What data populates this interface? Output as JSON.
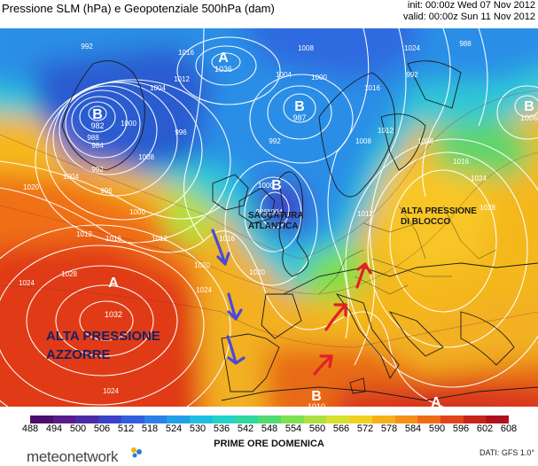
{
  "header": {
    "title": "Pressione SLM (hPa) e Geopotenziale 500hPa (dam)",
    "init": "init: 00:00z Wed 07 Nov 2012",
    "valid": "valid: 00:00z Sun 11 Nov 2012"
  },
  "map": {
    "pressure_centers": [
      {
        "type": "B",
        "value": "982"
      },
      {
        "type": "A",
        "value": "1036"
      },
      {
        "type": "B",
        "value": "987"
      },
      {
        "type": "B",
        "value": "1006"
      },
      {
        "type": "B",
        "value": ""
      },
      {
        "type": "A",
        "value": "1032"
      },
      {
        "type": "B",
        "value": "1010"
      },
      {
        "type": "A",
        "value": ""
      }
    ],
    "isobar_labels": [
      "992",
      "1016",
      "1012",
      "1004",
      "1000",
      "984",
      "988",
      "992",
      "996",
      "1000",
      "1004",
      "1008",
      "996",
      "992",
      "1008",
      "1004",
      "1000",
      "1020",
      "1024",
      "1012",
      "1016",
      "1012",
      "1016",
      "1020",
      "1024",
      "1028",
      "1024",
      "1024",
      "1016",
      "1012",
      "1008",
      "1004",
      "1000",
      "996",
      "988",
      "992",
      "1008",
      "1012",
      "1016",
      "1020",
      "1024",
      "1028"
    ],
    "annotations": {
      "azzorre": [
        "ALTA PRESSIONE",
        "AZZORRE"
      ],
      "saccatura": [
        "SACCATURA",
        "ATLANTICA"
      ],
      "blocco": [
        "ALTA PRESSIONE",
        "DI BLOCCO"
      ]
    },
    "arrow_colors": {
      "cold_flow": "#4a4ad8",
      "warm_flow": "#e0202a"
    }
  },
  "legend": {
    "ticks": [
      "488",
      "494",
      "500",
      "506",
      "512",
      "518",
      "524",
      "530",
      "536",
      "542",
      "548",
      "554",
      "560",
      "566",
      "572",
      "578",
      "584",
      "590",
      "596",
      "602",
      "608"
    ],
    "colors": [
      "#4b0f6b",
      "#5a1a8a",
      "#4a2aa6",
      "#3a40c8",
      "#2f60e0",
      "#2c80e8",
      "#22a0e6",
      "#1ebfe0",
      "#22d2c8",
      "#2ed8a0",
      "#50dc70",
      "#80e050",
      "#b0e040",
      "#d8e030",
      "#f2d020",
      "#f7b018",
      "#f79018",
      "#f06a18",
      "#e04418",
      "#c8241a",
      "#b0101e"
    ],
    "label": "PRIME ORE DOMENICA"
  },
  "footer": {
    "brand": "meteonetwork",
    "source": "DATI: GFS 1.0°"
  }
}
